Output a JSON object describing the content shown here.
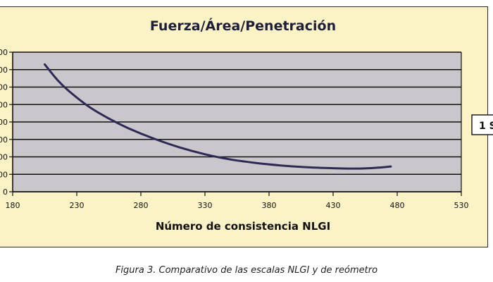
{
  "chart_data": {
    "type": "line",
    "title": "Fuerza/Área/Penetración",
    "xlabel": "Número de consistencia NLGI",
    "ylabel": "",
    "xlim": [
      180,
      530
    ],
    "x_ticks": [
      180,
      230,
      280,
      330,
      380,
      430,
      480,
      530
    ],
    "y_tick_labels": [
      "0",
      "00",
      "00",
      "00",
      "00",
      "00",
      "00",
      "00",
      "00"
    ],
    "grid": true,
    "series": [
      {
        "color": "#2e2a55",
        "x": [
          205,
          215,
          225,
          240,
          255,
          270,
          290,
          310,
          330,
          350,
          370,
          390,
          410,
          430,
          450,
          465,
          475
        ],
        "y": [
          7.3,
          6.4,
          5.7,
          4.85,
          4.2,
          3.65,
          3.05,
          2.55,
          2.15,
          1.85,
          1.65,
          1.5,
          1.4,
          1.35,
          1.33,
          1.38,
          1.45
        ]
      }
    ],
    "legend": [
      {
        "label": "1 S"
      }
    ],
    "legend_position": "right"
  },
  "caption": "Figura 3. Comparativo de las escalas NLGI y de reómetro"
}
